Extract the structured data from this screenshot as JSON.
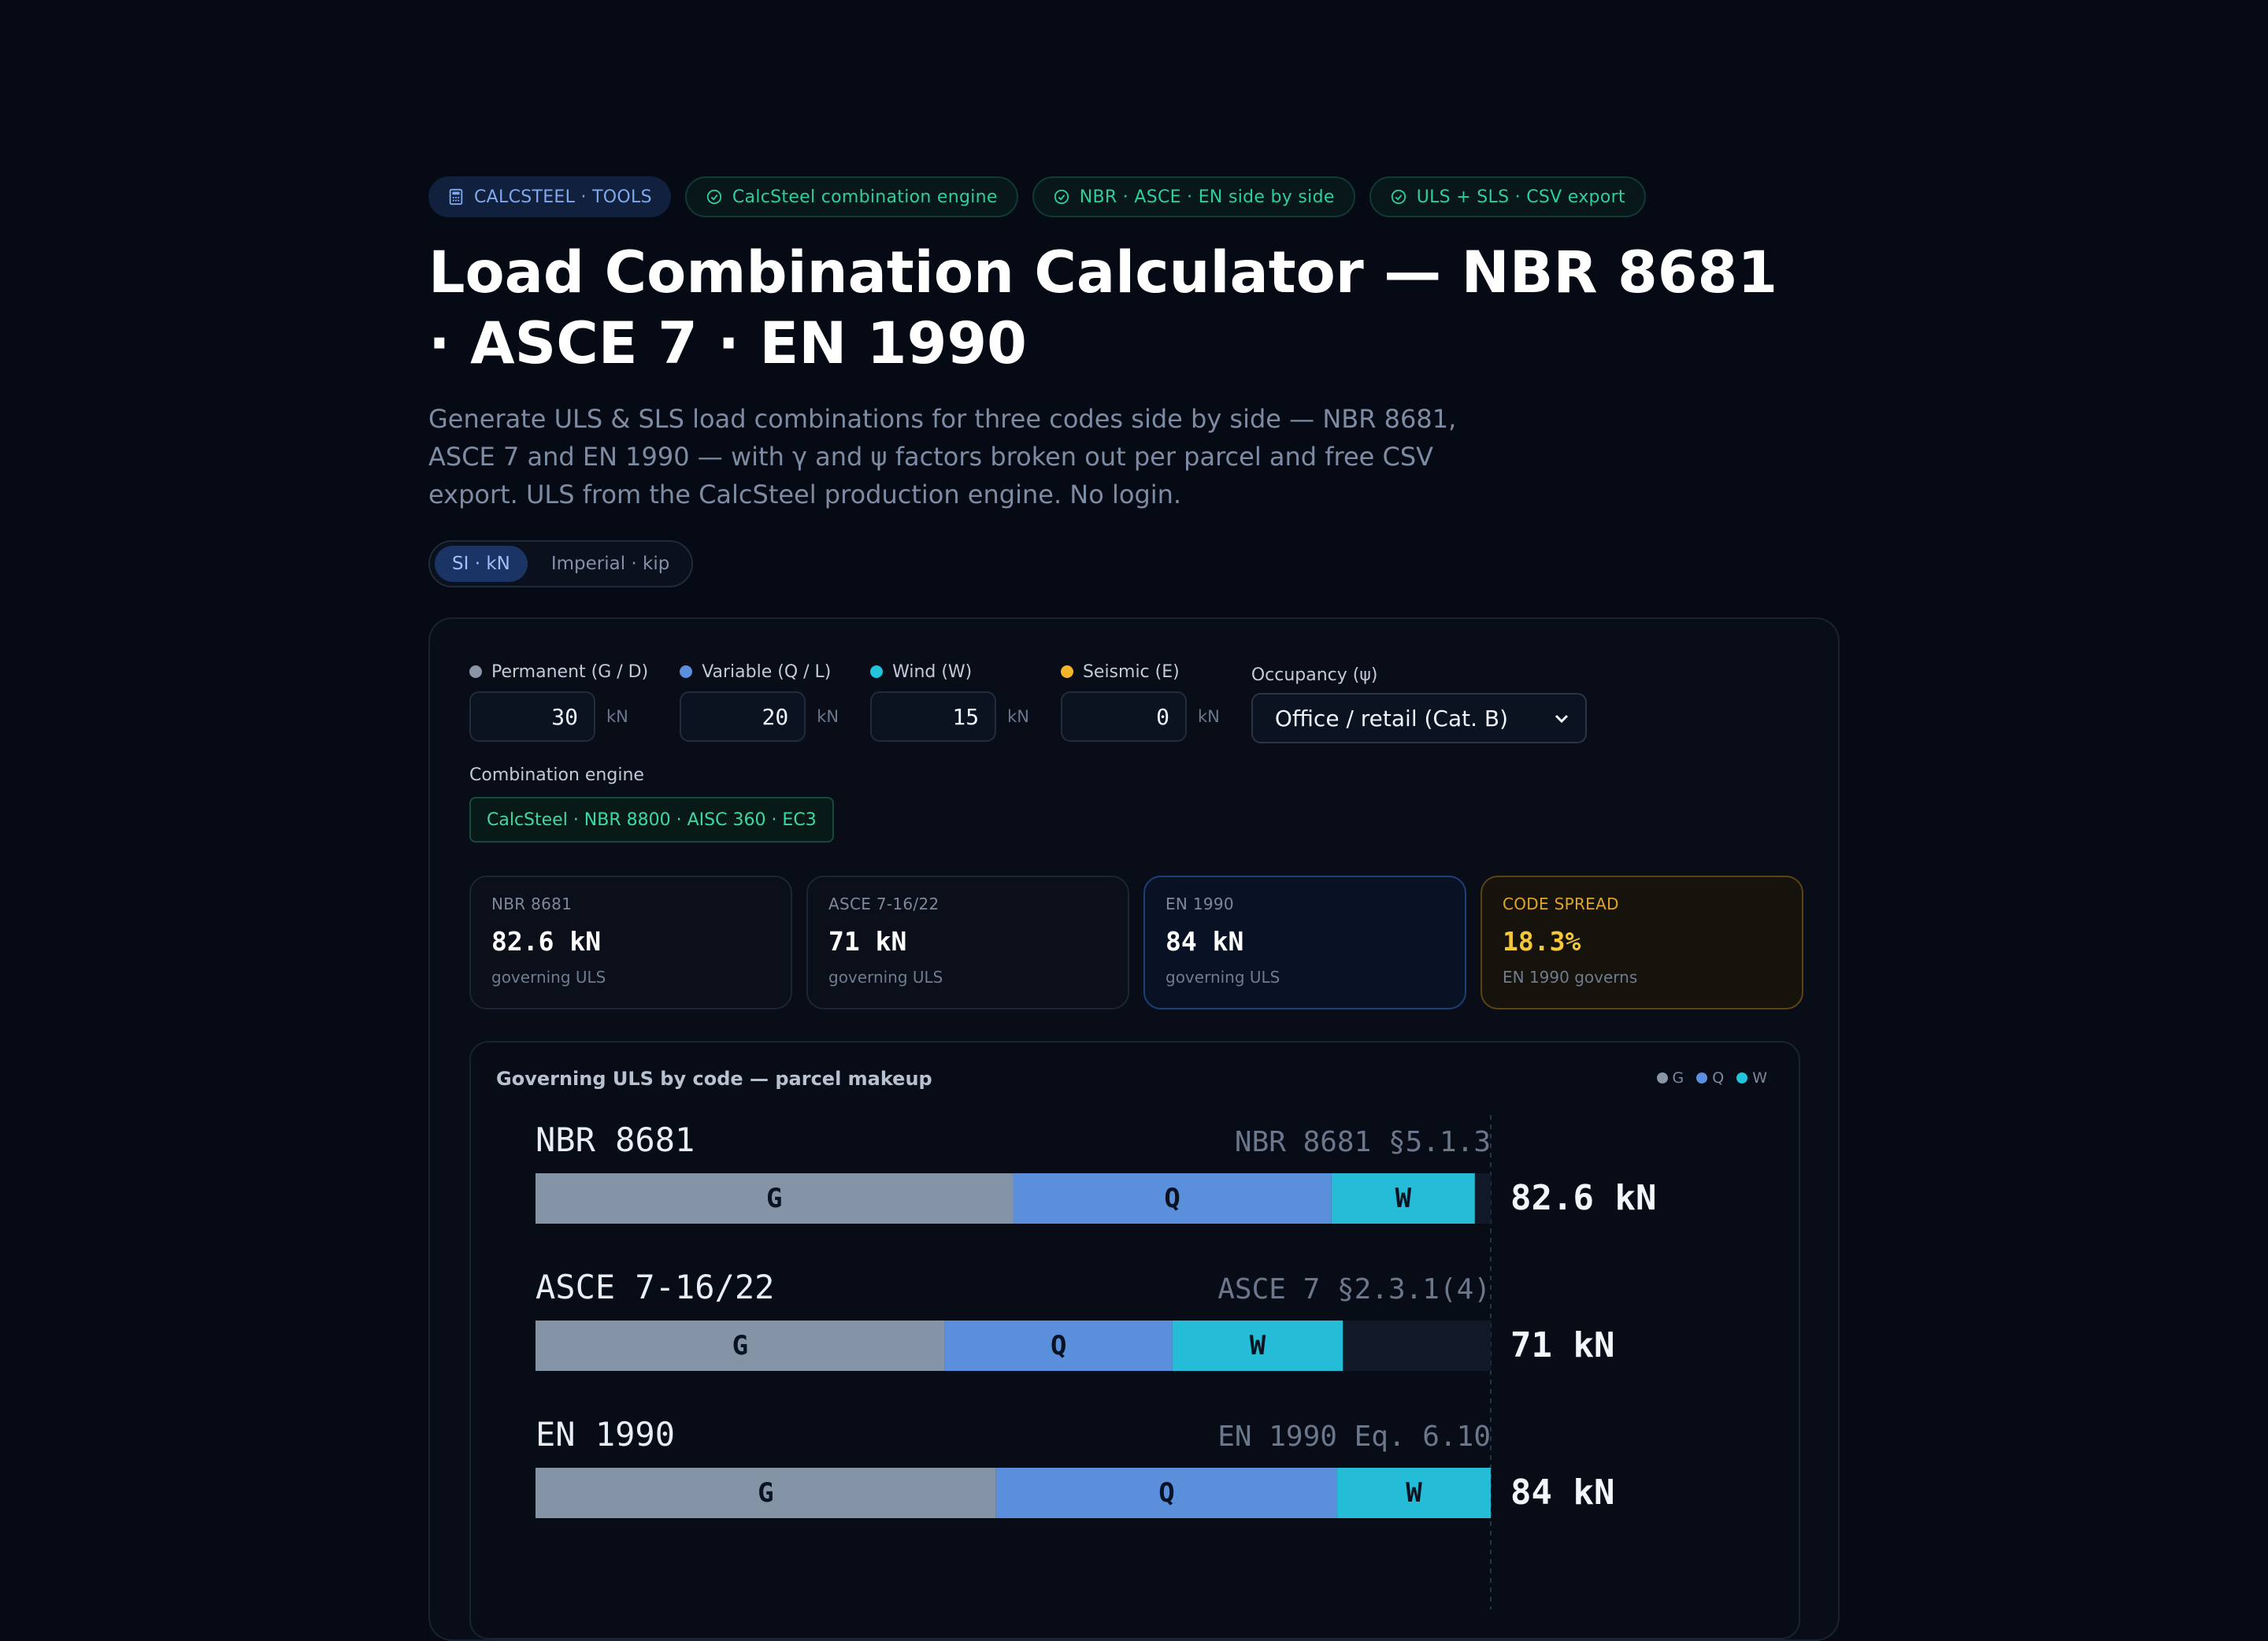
{
  "badges": [
    {
      "label": "CALCSTEEL · TOOLS",
      "icon": "calculator-icon",
      "style": "blue"
    },
    {
      "label": "CalcSteel combination engine",
      "icon": "check-circle-icon",
      "style": "green"
    },
    {
      "label": "NBR · ASCE · EN side by side",
      "icon": "check-circle-icon",
      "style": "green"
    },
    {
      "label": "ULS + SLS · CSV export",
      "icon": "check-circle-icon",
      "style": "green"
    }
  ],
  "title": "Load Combination Calculator — NBR 8681 · ASCE 7 · EN 1990",
  "lead": "Generate ULS & SLS load combinations for three codes side by side — NBR 8681, ASCE 7 and EN 1990 — with γ and ψ factors broken out per parcel and free CSV export. ULS from the CalcSteel production engine. No login.",
  "units": {
    "si": "SI · kN",
    "imperial": "Imperial · kip",
    "selected": "si"
  },
  "inputs": {
    "permanent": {
      "label": "Permanent (G / D)",
      "value": "30",
      "unit": "kN",
      "color": "#8a96a8"
    },
    "variable": {
      "label": "Variable (Q / L)",
      "value": "20",
      "unit": "kN",
      "color": "#5b8fe0"
    },
    "wind": {
      "label": "Wind (W)",
      "value": "15",
      "unit": "kN",
      "color": "#22c4dc"
    },
    "seismic": {
      "label": "Seismic (E)",
      "value": "0",
      "unit": "kN",
      "color": "#f1b62a"
    },
    "occupancy": {
      "label": "Occupancy (ψ)",
      "value": "Office / retail (Cat. B)"
    }
  },
  "engine": {
    "label": "Combination engine",
    "value": "CalcSteel · NBR 8800 · AISC 360 · EC3"
  },
  "cards": {
    "nbr": {
      "code": "NBR 8681",
      "value": "82.6 kN",
      "sub": "governing ULS"
    },
    "asce": {
      "code": "ASCE 7-16/22",
      "value": "71 kN",
      "sub": "governing ULS"
    },
    "en": {
      "code": "EN 1990",
      "value": "84 kN",
      "sub": "governing ULS"
    },
    "spread": {
      "code": "CODE SPREAD",
      "value": "18.3%",
      "sub": "EN 1990 governs"
    }
  },
  "chart_title": "Governing ULS by code — parcel makeup",
  "legend": [
    {
      "label": "G",
      "color": "#8a96a8"
    },
    {
      "label": "Q",
      "color": "#5b8fe0"
    },
    {
      "label": "W",
      "color": "#22c4dc"
    }
  ],
  "chart_data": {
    "type": "bar",
    "orientation": "horizontal",
    "stacked": true,
    "title": "Governing ULS by code — parcel makeup",
    "xlim": [
      0,
      84
    ],
    "categories": [
      "NBR 8681",
      "ASCE 7-16/22",
      "EN 1990"
    ],
    "clauses": [
      "NBR 8681 §5.1.3",
      "ASCE 7 §2.3.1(4)",
      "EN 1990 Eq. 6.10"
    ],
    "totals_labels": [
      "82.6 kN",
      "71 kN",
      "84 kN"
    ],
    "series": [
      {
        "name": "G",
        "values": [
          42,
          36,
          40.5
        ],
        "color": "#8493a6"
      },
      {
        "name": "Q",
        "values": [
          28,
          20,
          30
        ],
        "color": "#5a8fdc"
      },
      {
        "name": "W",
        "values": [
          12.6,
          15,
          13.5
        ],
        "color": "#24bcd6"
      }
    ]
  }
}
